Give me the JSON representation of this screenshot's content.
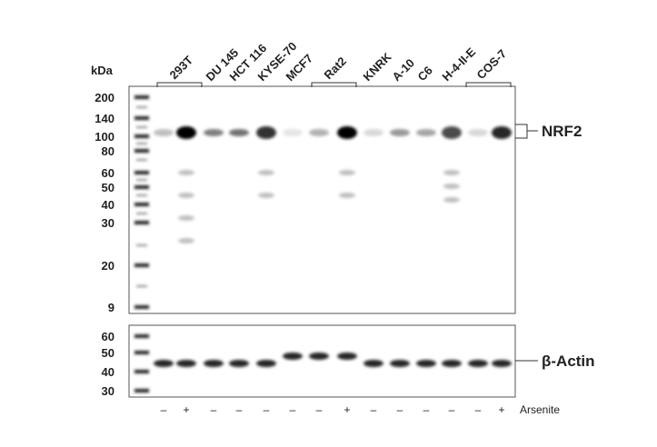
{
  "kda_label": "kDa",
  "cell_lines": [
    "293T",
    "DU 145",
    "HCT 116",
    "KYSE-70",
    "MCF7",
    "Rat2",
    "KNRK",
    "A-10",
    "C6",
    "H-4-II-E",
    "COS-7"
  ],
  "markers_top": [
    "200",
    "140",
    "100",
    "80",
    "60",
    "50",
    "40",
    "30",
    "20",
    "9"
  ],
  "markers_bottom": [
    "60",
    "50",
    "40",
    "30"
  ],
  "targets": [
    "NRF2",
    "β-Actin"
  ],
  "treatment": {
    "label": "Arsenite",
    "signs": [
      "–",
      "+",
      "–",
      "–",
      "–",
      "–",
      "–",
      "+",
      "–",
      "–",
      "–",
      "–",
      "–",
      "+"
    ]
  }
}
